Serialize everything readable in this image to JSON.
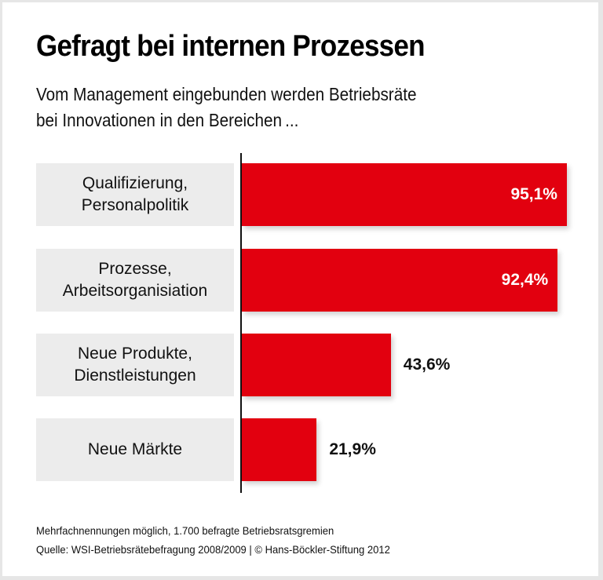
{
  "chart_data": {
    "type": "bar",
    "orientation": "horizontal",
    "title": "Gefragt bei internen Prozessen",
    "subtitle": [
      "Vom Management eingebunden werden Betriebsräte",
      "bei Innovationen in den Bereichen ..."
    ],
    "categories": [
      [
        "Qualifizierung,",
        "Personalpolitik"
      ],
      [
        "Prozesse,",
        "Arbeitsorganisiation"
      ],
      [
        "Neue Produkte,",
        "Dienstleistungen"
      ],
      [
        "Neue Märkte"
      ]
    ],
    "values": [
      95.1,
      92.4,
      43.6,
      21.9
    ],
    "value_labels": [
      "95,1%",
      "92,4%",
      "43,6%",
      "21,9%"
    ],
    "unit": "%",
    "xlim": [
      0,
      100
    ],
    "grid": false,
    "bar_color": "#e2000f",
    "label_bg_color": "#ececec"
  },
  "footer": {
    "note": "Mehrfachnennungen möglich, 1.700 befragte Betriebsratsgremien",
    "source": "Quelle: WSI-Betriebsrätebefragung 2008/2009 | © Hans-Böckler-Stiftung 2012"
  }
}
